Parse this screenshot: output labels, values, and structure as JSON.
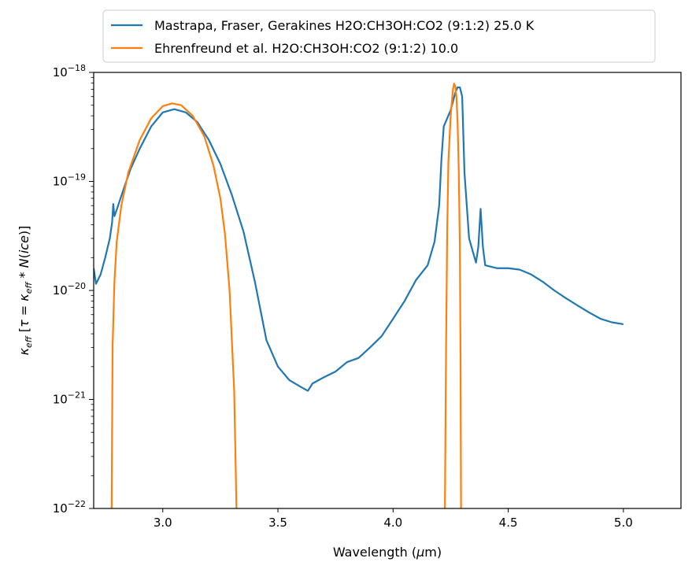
{
  "chart_data": {
    "type": "line",
    "xlabel": "Wavelength (μm)",
    "ylabel": "κeff [τ = κeff * N(ice)]",
    "xlim": [
      2.7,
      5.25
    ],
    "ylim": [
      1e-22,
      1e-18
    ],
    "yscale": "log",
    "grid": false,
    "legend_position": "top-center",
    "x_ticks": [
      3.0,
      3.5,
      4.0,
      4.5,
      5.0
    ],
    "x_tick_labels": [
      "3.0",
      "3.5",
      "4.0",
      "4.5",
      "5.0"
    ],
    "y_ticks": [
      -22,
      -21,
      -20,
      -19,
      -18
    ],
    "y_tick_labels": [
      {
        "base": "10",
        "exp": "−22"
      },
      {
        "base": "10",
        "exp": "−21"
      },
      {
        "base": "10",
        "exp": "−20"
      },
      {
        "base": "10",
        "exp": "−19"
      },
      {
        "base": "10",
        "exp": "−18"
      }
    ],
    "series": [
      {
        "name": "Mastrapa, Fraser, Gerakines H2O:CH3OH:CO2 (9:1:2) 25.0 K",
        "color": "#1f77b4",
        "points": [
          [
            2.7,
            1.6e-20
          ],
          [
            2.71,
            1.15e-20
          ],
          [
            2.73,
            1.4e-20
          ],
          [
            2.75,
            2e-20
          ],
          [
            2.77,
            3e-20
          ],
          [
            2.78,
            4.2e-20
          ],
          [
            2.785,
            6.2e-20
          ],
          [
            2.79,
            4.8e-20
          ],
          [
            2.8,
            5.5e-20
          ],
          [
            2.83,
            8.5e-20
          ],
          [
            2.86,
            1.3e-19
          ],
          [
            2.9,
            2e-19
          ],
          [
            2.95,
            3.2e-19
          ],
          [
            3.0,
            4.3e-19
          ],
          [
            3.05,
            4.6e-19
          ],
          [
            3.1,
            4.3e-19
          ],
          [
            3.15,
            3.5e-19
          ],
          [
            3.2,
            2.4e-19
          ],
          [
            3.25,
            1.45e-19
          ],
          [
            3.3,
            7.5e-20
          ],
          [
            3.35,
            3.5e-20
          ],
          [
            3.4,
            1.2e-20
          ],
          [
            3.45,
            3.5e-21
          ],
          [
            3.5,
            2e-21
          ],
          [
            3.55,
            1.5e-21
          ],
          [
            3.6,
            1.3e-21
          ],
          [
            3.63,
            1.2e-21
          ],
          [
            3.65,
            1.4e-21
          ],
          [
            3.7,
            1.6e-21
          ],
          [
            3.75,
            1.8e-21
          ],
          [
            3.8,
            2.2e-21
          ],
          [
            3.85,
            2.4e-21
          ],
          [
            3.9,
            3e-21
          ],
          [
            3.95,
            3.8e-21
          ],
          [
            4.0,
            5.5e-21
          ],
          [
            4.05,
            8e-21
          ],
          [
            4.1,
            1.25e-20
          ],
          [
            4.15,
            1.7e-20
          ],
          [
            4.18,
            2.8e-20
          ],
          [
            4.2,
            6e-20
          ],
          [
            4.21,
            1.6e-19
          ],
          [
            4.22,
            3.2e-19
          ],
          [
            4.25,
            4.5e-19
          ],
          [
            4.27,
            6.5e-19
          ],
          [
            4.28,
            7.3e-19
          ],
          [
            4.29,
            7.3e-19
          ],
          [
            4.3,
            6e-19
          ],
          [
            4.31,
            1.2e-19
          ],
          [
            4.33,
            3e-20
          ],
          [
            4.36,
            1.8e-20
          ],
          [
            4.37,
            2.5e-20
          ],
          [
            4.38,
            5.6e-20
          ],
          [
            4.39,
            2.5e-20
          ],
          [
            4.4,
            1.7e-20
          ],
          [
            4.45,
            1.6e-20
          ],
          [
            4.5,
            1.6e-20
          ],
          [
            4.55,
            1.55e-20
          ],
          [
            4.6,
            1.4e-20
          ],
          [
            4.65,
            1.2e-20
          ],
          [
            4.7,
            1e-20
          ],
          [
            4.75,
            8.5e-21
          ],
          [
            4.8,
            7.3e-21
          ],
          [
            4.85,
            6.3e-21
          ],
          [
            4.9,
            5.5e-21
          ],
          [
            4.95,
            5.1e-21
          ],
          [
            5.0,
            4.9e-21
          ]
        ]
      },
      {
        "name": "Ehrenfreund et al. H2O:CH3OH:CO2 (9:1:2) 10.0",
        "color": "#ff7f0e",
        "points": [
          [
            2.778,
            1e-22
          ],
          [
            2.782,
            3e-21
          ],
          [
            2.79,
            1.2e-20
          ],
          [
            2.8,
            2.8e-20
          ],
          [
            2.82,
            6e-20
          ],
          [
            2.85,
            1.2e-19
          ],
          [
            2.9,
            2.4e-19
          ],
          [
            2.95,
            3.8e-19
          ],
          [
            3.0,
            4.9e-19
          ],
          [
            3.04,
            5.2e-19
          ],
          [
            3.08,
            5e-19
          ],
          [
            3.13,
            4e-19
          ],
          [
            3.18,
            2.6e-19
          ],
          [
            3.22,
            1.4e-19
          ],
          [
            3.25,
            7e-20
          ],
          [
            3.27,
            3.3e-20
          ],
          [
            3.29,
            1e-20
          ],
          [
            3.31,
            1.2e-21
          ],
          [
            3.32,
            1e-22
          ],
          null,
          [
            4.225,
            1e-22
          ],
          [
            4.23,
            3e-21
          ],
          [
            4.235,
            3.5e-20
          ],
          [
            4.24,
            1.5e-19
          ],
          [
            4.25,
            4e-19
          ],
          [
            4.26,
            7e-19
          ],
          [
            4.265,
            7.9e-19
          ],
          [
            4.27,
            7.4e-19
          ],
          [
            4.275,
            6e-19
          ],
          [
            4.28,
            3.5e-19
          ],
          [
            4.285,
            1.3e-19
          ],
          [
            4.29,
            2.5e-20
          ],
          [
            4.293,
            2e-21
          ],
          [
            4.295,
            1e-22
          ]
        ]
      }
    ]
  }
}
